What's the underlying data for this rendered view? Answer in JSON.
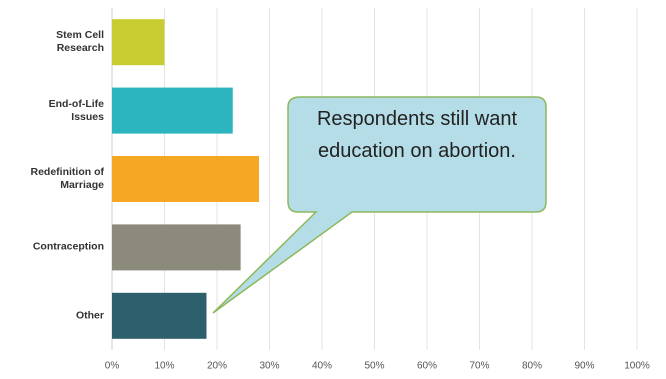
{
  "chart_data": {
    "type": "bar",
    "orientation": "horizontal",
    "categories": [
      "Stem Cell Research",
      "End-of-Life Issues",
      "Redefinition of Marriage",
      "Contraception",
      "Other"
    ],
    "values": [
      10,
      23,
      28,
      24.5,
      18
    ],
    "colors": [
      "#c9cc31",
      "#2cb5bf",
      "#f5a623",
      "#8b8a7b",
      "#2e5f6d"
    ],
    "xlim": [
      0,
      100
    ],
    "xticks": [
      {
        "value": 0,
        "label": "0%"
      },
      {
        "value": 10,
        "label": "10%"
      },
      {
        "value": 20,
        "label": "20%"
      },
      {
        "value": 30,
        "label": "30%"
      },
      {
        "value": 40,
        "label": "40%"
      },
      {
        "value": 50,
        "label": "50%"
      },
      {
        "value": 60,
        "label": "60%"
      },
      {
        "value": 70,
        "label": "70%"
      },
      {
        "value": 80,
        "label": "80%"
      },
      {
        "value": 90,
        "label": "90%"
      },
      {
        "value": 100,
        "label": "100%"
      }
    ],
    "grid": true,
    "annotation": "Respondents still want education on abortion."
  }
}
